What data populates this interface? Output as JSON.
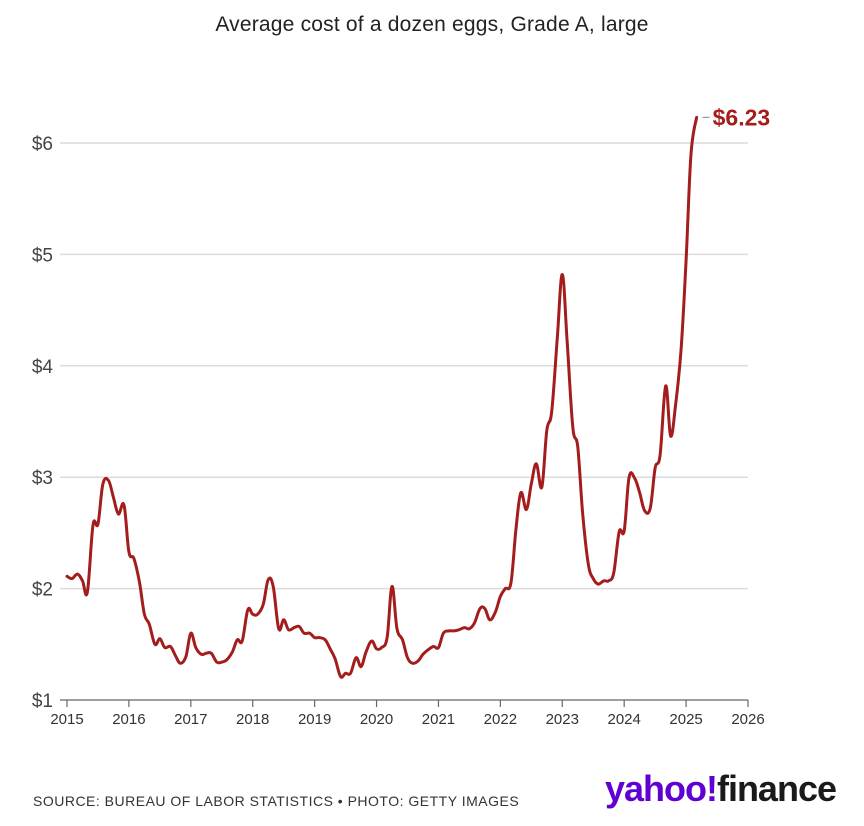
{
  "chart_data": {
    "type": "line",
    "title": "Average cost of a dozen eggs, Grade A, large",
    "xlabel": "",
    "ylabel": "",
    "xlim": [
      2015,
      2026
    ],
    "ylim": [
      1,
      6.3
    ],
    "x_ticks": [
      {
        "value": 2015,
        "label": "2015"
      },
      {
        "value": 2016,
        "label": "2016"
      },
      {
        "value": 2017,
        "label": "2017"
      },
      {
        "value": 2018,
        "label": "2018"
      },
      {
        "value": 2019,
        "label": "2019"
      },
      {
        "value": 2020,
        "label": "2020"
      },
      {
        "value": 2021,
        "label": "2021"
      },
      {
        "value": 2022,
        "label": "2022"
      },
      {
        "value": 2023,
        "label": "2023"
      },
      {
        "value": 2024,
        "label": "2024"
      },
      {
        "value": 2025,
        "label": "2025"
      },
      {
        "value": 2026,
        "label": "2026"
      }
    ],
    "y_ticks": [
      {
        "value": 1,
        "label": "$1"
      },
      {
        "value": 2,
        "label": "$2"
      },
      {
        "value": 3,
        "label": "$3"
      },
      {
        "value": 4,
        "label": "$4"
      },
      {
        "value": 5,
        "label": "$5"
      },
      {
        "value": 6,
        "label": "$6"
      }
    ],
    "grid": "horizontal",
    "series": [
      {
        "name": "Average cost",
        "color": "#a41d1d",
        "points": [
          [
            2015.0,
            2.11
          ],
          [
            2015.08,
            2.09
          ],
          [
            2015.17,
            2.13
          ],
          [
            2015.25,
            2.07
          ],
          [
            2015.33,
            1.97
          ],
          [
            2015.42,
            2.57
          ],
          [
            2015.5,
            2.58
          ],
          [
            2015.58,
            2.94
          ],
          [
            2015.67,
            2.97
          ],
          [
            2015.75,
            2.82
          ],
          [
            2015.83,
            2.67
          ],
          [
            2015.92,
            2.75
          ],
          [
            2016.0,
            2.33
          ],
          [
            2016.08,
            2.27
          ],
          [
            2016.17,
            2.06
          ],
          [
            2016.25,
            1.77
          ],
          [
            2016.33,
            1.68
          ],
          [
            2016.42,
            1.5
          ],
          [
            2016.5,
            1.55
          ],
          [
            2016.58,
            1.47
          ],
          [
            2016.67,
            1.48
          ],
          [
            2016.75,
            1.4
          ],
          [
            2016.83,
            1.33
          ],
          [
            2016.92,
            1.39
          ],
          [
            2017.0,
            1.6
          ],
          [
            2017.08,
            1.47
          ],
          [
            2017.17,
            1.41
          ],
          [
            2017.25,
            1.42
          ],
          [
            2017.33,
            1.42
          ],
          [
            2017.42,
            1.34
          ],
          [
            2017.5,
            1.34
          ],
          [
            2017.58,
            1.36
          ],
          [
            2017.67,
            1.43
          ],
          [
            2017.75,
            1.54
          ],
          [
            2017.83,
            1.53
          ],
          [
            2017.92,
            1.81
          ],
          [
            2018.0,
            1.77
          ],
          [
            2018.08,
            1.77
          ],
          [
            2018.17,
            1.86
          ],
          [
            2018.25,
            2.08
          ],
          [
            2018.33,
            2.02
          ],
          [
            2018.42,
            1.64
          ],
          [
            2018.5,
            1.72
          ],
          [
            2018.58,
            1.63
          ],
          [
            2018.67,
            1.65
          ],
          [
            2018.75,
            1.66
          ],
          [
            2018.83,
            1.6
          ],
          [
            2018.92,
            1.6
          ],
          [
            2019.0,
            1.56
          ],
          [
            2019.08,
            1.56
          ],
          [
            2019.17,
            1.54
          ],
          [
            2019.25,
            1.46
          ],
          [
            2019.33,
            1.37
          ],
          [
            2019.42,
            1.21
          ],
          [
            2019.5,
            1.24
          ],
          [
            2019.58,
            1.24
          ],
          [
            2019.67,
            1.38
          ],
          [
            2019.75,
            1.3
          ],
          [
            2019.83,
            1.43
          ],
          [
            2019.92,
            1.53
          ],
          [
            2020.0,
            1.46
          ],
          [
            2020.08,
            1.47
          ],
          [
            2020.17,
            1.56
          ],
          [
            2020.25,
            2.02
          ],
          [
            2020.33,
            1.64
          ],
          [
            2020.42,
            1.54
          ],
          [
            2020.5,
            1.38
          ],
          [
            2020.58,
            1.33
          ],
          [
            2020.67,
            1.35
          ],
          [
            2020.75,
            1.41
          ],
          [
            2020.83,
            1.45
          ],
          [
            2020.92,
            1.48
          ],
          [
            2021.0,
            1.47
          ],
          [
            2021.08,
            1.6
          ],
          [
            2021.17,
            1.62
          ],
          [
            2021.25,
            1.62
          ],
          [
            2021.33,
            1.63
          ],
          [
            2021.42,
            1.65
          ],
          [
            2021.5,
            1.64
          ],
          [
            2021.58,
            1.69
          ],
          [
            2021.67,
            1.82
          ],
          [
            2021.75,
            1.82
          ],
          [
            2021.83,
            1.72
          ],
          [
            2021.92,
            1.79
          ],
          [
            2022.0,
            1.93
          ],
          [
            2022.08,
            2.0
          ],
          [
            2022.17,
            2.05
          ],
          [
            2022.25,
            2.52
          ],
          [
            2022.33,
            2.86
          ],
          [
            2022.42,
            2.71
          ],
          [
            2022.5,
            2.94
          ],
          [
            2022.58,
            3.12
          ],
          [
            2022.67,
            2.91
          ],
          [
            2022.75,
            3.42
          ],
          [
            2022.83,
            3.59
          ],
          [
            2022.92,
            4.25
          ],
          [
            2023.0,
            4.82
          ],
          [
            2023.08,
            4.21
          ],
          [
            2023.17,
            3.45
          ],
          [
            2023.25,
            3.27
          ],
          [
            2023.33,
            2.67
          ],
          [
            2023.42,
            2.22
          ],
          [
            2023.5,
            2.09
          ],
          [
            2023.58,
            2.04
          ],
          [
            2023.67,
            2.07
          ],
          [
            2023.75,
            2.07
          ],
          [
            2023.83,
            2.14
          ],
          [
            2023.92,
            2.51
          ],
          [
            2024.0,
            2.52
          ],
          [
            2024.08,
            3.0
          ],
          [
            2024.17,
            2.99
          ],
          [
            2024.25,
            2.86
          ],
          [
            2024.33,
            2.7
          ],
          [
            2024.42,
            2.72
          ],
          [
            2024.5,
            3.08
          ],
          [
            2024.58,
            3.2
          ],
          [
            2024.67,
            3.82
          ],
          [
            2024.75,
            3.37
          ],
          [
            2024.83,
            3.65
          ],
          [
            2024.92,
            4.15
          ],
          [
            2025.0,
            4.95
          ],
          [
            2025.08,
            5.9
          ],
          [
            2025.17,
            6.23
          ]
        ]
      }
    ],
    "annotations": [
      {
        "x": 2025.17,
        "y": 6.23,
        "text": "$6.23"
      }
    ]
  },
  "footer": {
    "source": "SOURCE: BUREAU OF LABOR STATISTICS • PHOTO: GETTY IMAGES"
  },
  "brand": {
    "yahoo": "yahoo",
    "bang": "!",
    "finance": "finance"
  }
}
